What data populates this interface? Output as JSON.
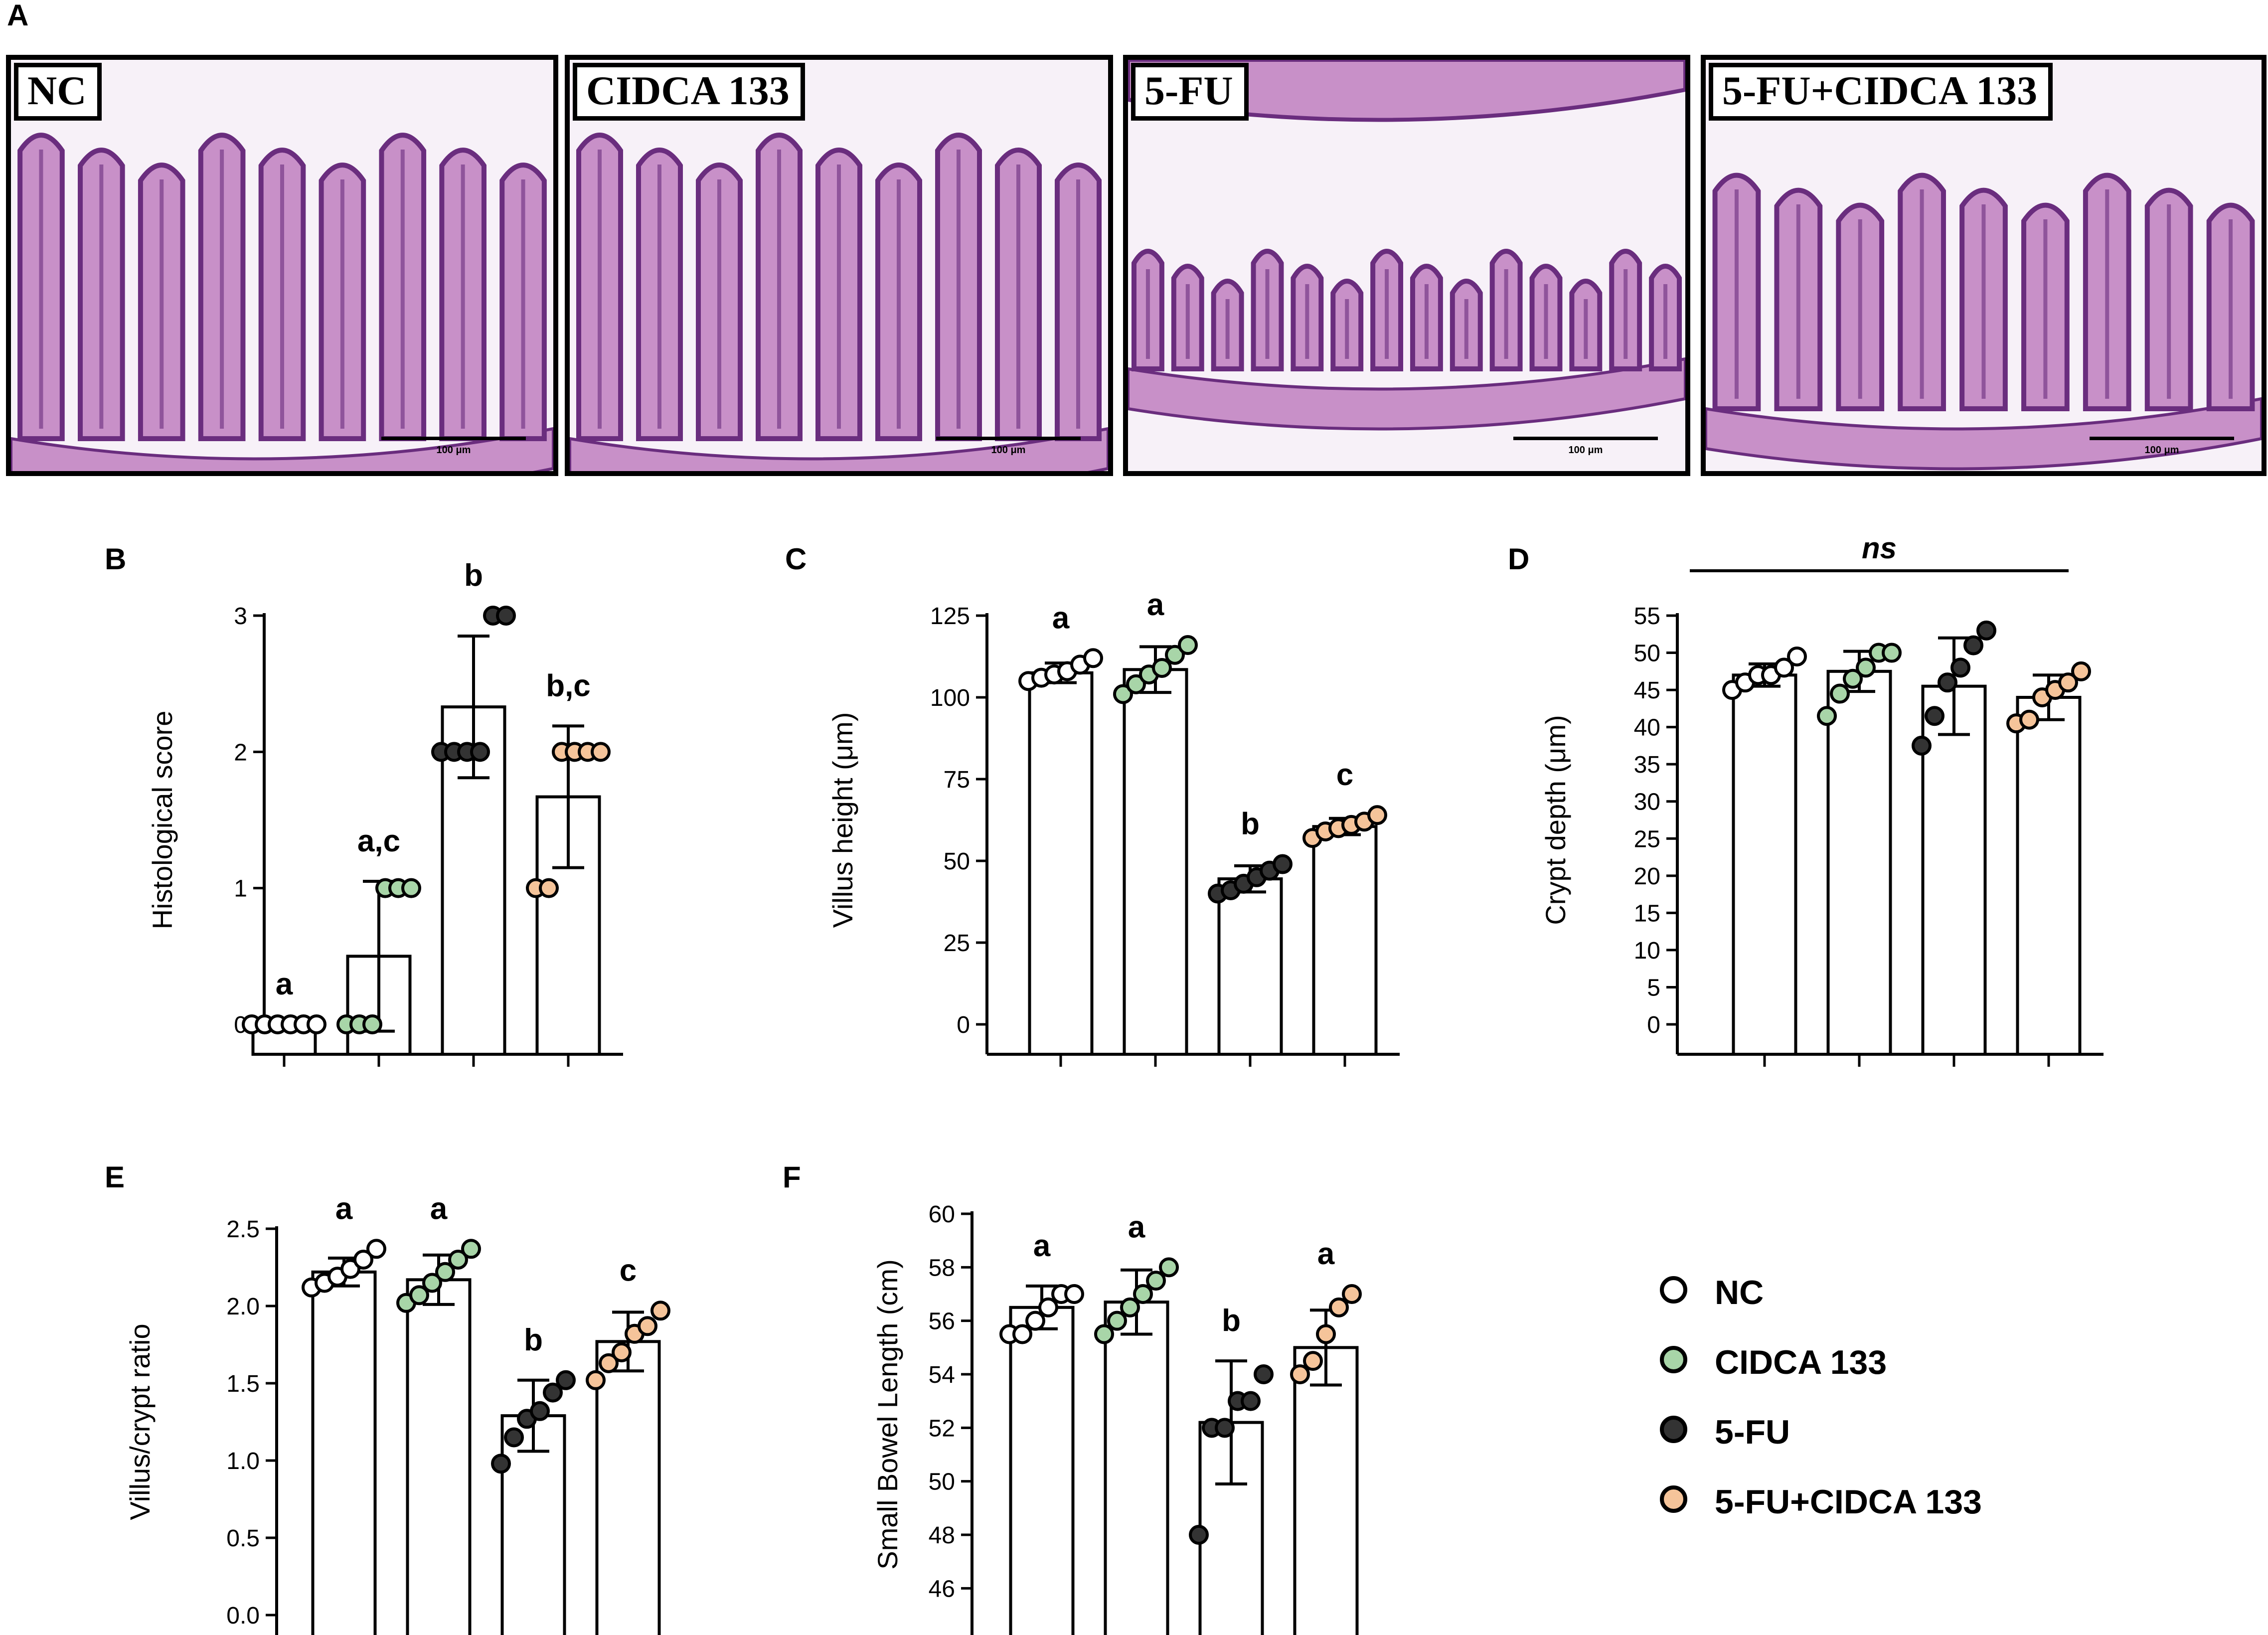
{
  "panel_a": {
    "letter": "A",
    "images": [
      {
        "label": "NC",
        "scale_bar": "100 μm",
        "style": "nc"
      },
      {
        "label": "CIDCA 133",
        "scale_bar": "100 μm",
        "style": "cidca"
      },
      {
        "label": "5-FU",
        "scale_bar": "100 μm",
        "style": "fu"
      },
      {
        "label": "5-FU+CIDCA 133",
        "scale_bar": "100 μm",
        "style": "fucidca"
      }
    ]
  },
  "colors": {
    "NC": "#ffffff",
    "CIDCA 133": "#a8d5a8",
    "5-FU": "#333333",
    "5-FU+CIDCA 133": "#f5c49a",
    "tissue_dark": "#6a2d7e",
    "tissue_light": "#c890c8"
  },
  "legend": [
    {
      "label": "NC",
      "color": "#ffffff"
    },
    {
      "label": "CIDCA 133",
      "color": "#a8d5a8"
    },
    {
      "label": "5-FU",
      "color": "#333333"
    },
    {
      "label": "5-FU+CIDCA 133",
      "color": "#f5c49a"
    }
  ],
  "chart_data": [
    {
      "panel": "B",
      "type": "bar",
      "ylabel": "Histological score",
      "ylim": [
        0,
        3
      ],
      "yticks": [
        0,
        1,
        2,
        3
      ],
      "categories": [
        "NC",
        "CIDCA 133",
        "5-FU",
        "5-FU+CIDCA 133"
      ],
      "values": [
        0,
        0.5,
        2.33,
        1.67
      ],
      "errors": [
        0,
        0.55,
        0.52,
        0.52
      ],
      "significance": [
        "a",
        "a,c",
        "b",
        "b,c"
      ],
      "points": [
        [
          0,
          0,
          0,
          0,
          0,
          0
        ],
        [
          0,
          0,
          0,
          1,
          1,
          1
        ],
        [
          2,
          2,
          2,
          2,
          3,
          3
        ],
        [
          1,
          1,
          2,
          2,
          2,
          2
        ]
      ]
    },
    {
      "panel": "C",
      "type": "bar",
      "ylabel": "Villus height (μm)",
      "ylim": [
        0,
        125
      ],
      "yticks": [
        0,
        25,
        50,
        75,
        100,
        125
      ],
      "categories": [
        "NC",
        "CIDCA 133",
        "5-FU",
        "5-FU+CIDCA 133"
      ],
      "values": [
        107.5,
        108.5,
        44.5,
        60.5
      ],
      "errors": [
        3,
        7,
        4,
        2.5
      ],
      "significance": [
        "a",
        "a",
        "b",
        "c"
      ],
      "points": [
        [
          105,
          106,
          107,
          108,
          110,
          112
        ],
        [
          101,
          104,
          107,
          109,
          113,
          116
        ],
        [
          40,
          41,
          43,
          45,
          47,
          49
        ],
        [
          57,
          59,
          60,
          61,
          62,
          64
        ]
      ]
    },
    {
      "panel": "D",
      "type": "bar",
      "ylabel": "Crypt depth  (μm)",
      "ylim": [
        0,
        55
      ],
      "yticks": [
        0,
        5,
        10,
        15,
        20,
        25,
        30,
        35,
        40,
        45,
        50,
        55
      ],
      "categories": [
        "NC",
        "CIDCA 133",
        "5-FU",
        "5-FU+CIDCA 133"
      ],
      "values": [
        47,
        47.5,
        45.5,
        44
      ],
      "errors": [
        1.5,
        2.7,
        6.5,
        3
      ],
      "significance_line": "ns",
      "points": [
        [
          45,
          46,
          47,
          47,
          48,
          49.5
        ],
        [
          41.5,
          44.5,
          46.5,
          48,
          50,
          50
        ],
        [
          37.5,
          41.5,
          46,
          48,
          51,
          53
        ],
        [
          40.5,
          41,
          44,
          45,
          46,
          47.5
        ]
      ]
    },
    {
      "panel": "E",
      "type": "bar",
      "ylabel": "Villus/crypt ratio",
      "ylim": [
        0,
        2.5
      ],
      "yticks": [
        "0.0",
        "0.5",
        "1.0",
        "1.5",
        "2.0",
        "2.5"
      ],
      "categories": [
        "NC",
        "CIDCA 133",
        "5-FU",
        "5-FU+CIDCA 133"
      ],
      "values": [
        2.22,
        2.17,
        1.29,
        1.77
      ],
      "errors": [
        0.09,
        0.16,
        0.23,
        0.19
      ],
      "significance": [
        "a",
        "a",
        "b",
        "c"
      ],
      "points": [
        [
          2.12,
          2.15,
          2.19,
          2.24,
          2.3,
          2.37
        ],
        [
          2.02,
          2.07,
          2.15,
          2.22,
          2.3,
          2.37
        ],
        [
          0.98,
          1.15,
          1.27,
          1.32,
          1.44,
          1.52
        ],
        [
          1.52,
          1.63,
          1.7,
          1.82,
          1.87,
          1.97
        ]
      ]
    },
    {
      "panel": "F",
      "type": "bar",
      "ylabel": "Small Bowel Length (cm)",
      "ylim": [
        45,
        60
      ],
      "yticks": [
        46,
        48,
        50,
        52,
        54,
        56,
        58,
        60
      ],
      "categories": [
        "NC",
        "CIDCA 133",
        "5-FU",
        "5-FU+CIDCA 133"
      ],
      "values": [
        56.5,
        56.7,
        52.2,
        55
      ],
      "errors": [
        0.8,
        1.2,
        2.3,
        1.4
      ],
      "significance": [
        "a",
        "a",
        "b",
        "a"
      ],
      "points": [
        [
          55.5,
          55.5,
          56,
          56.5,
          57,
          57
        ],
        [
          55.5,
          56,
          56.5,
          57,
          57.5,
          58
        ],
        [
          48,
          52,
          52,
          53,
          53,
          54
        ],
        [
          54,
          54.5,
          55.5,
          56.5,
          57
        ]
      ]
    }
  ]
}
